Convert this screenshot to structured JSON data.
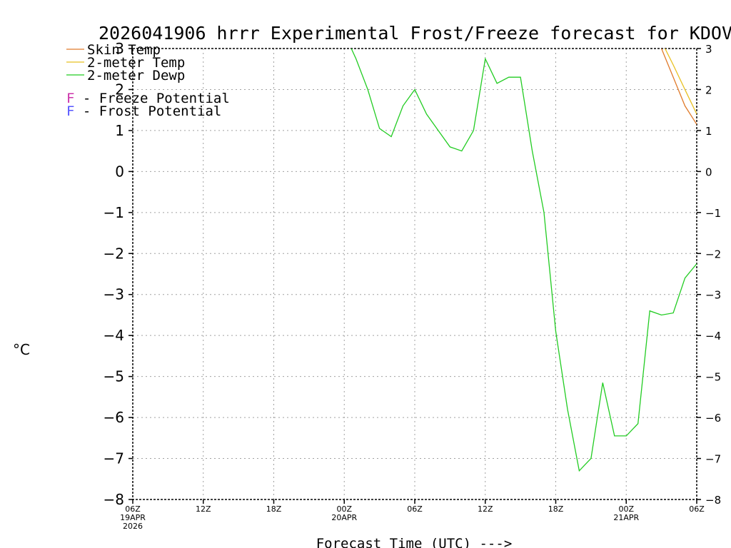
{
  "chart_data": {
    "type": "line",
    "title": "2026041906 hrrr Experimental Frost/Freeze forecast for KDOV",
    "xlabel": "Forecast Time (UTC) --->",
    "ylabel": "°C",
    "ylim": [
      -8,
      3
    ],
    "xlim_hours": [
      0,
      48
    ],
    "y_ticks": [
      3,
      2,
      1,
      0,
      -1,
      -2,
      -3,
      -4,
      -5,
      -6,
      -7,
      -8
    ],
    "y_tick_labels": [
      "3",
      "2",
      "1",
      "0",
      "−1",
      "−2",
      "−3",
      "−4",
      "−5",
      "−6",
      "−7",
      "−8"
    ],
    "x_ticks": [
      {
        "hour": 0,
        "lines": [
          "06Z",
          "19APR",
          "2026"
        ]
      },
      {
        "hour": 6,
        "lines": [
          "12Z"
        ]
      },
      {
        "hour": 12,
        "lines": [
          "18Z"
        ]
      },
      {
        "hour": 18,
        "lines": [
          "00Z",
          "20APR"
        ]
      },
      {
        "hour": 24,
        "lines": [
          "06Z"
        ]
      },
      {
        "hour": 30,
        "lines": [
          "12Z"
        ]
      },
      {
        "hour": 36,
        "lines": [
          "18Z"
        ]
      },
      {
        "hour": 42,
        "lines": [
          "00Z",
          "21APR"
        ]
      },
      {
        "hour": 48,
        "lines": [
          "06Z"
        ]
      }
    ],
    "grid": true,
    "legend_position": "top-left",
    "legend": [
      {
        "label": "Skin Temp",
        "color": "#e07a2a"
      },
      {
        "label": "2-meter Temp",
        "color": "#e8c020"
      },
      {
        "label": "2-meter Dewp",
        "color": "#22cc22"
      }
    ],
    "potential_legend": [
      {
        "marker": "F",
        "text": " - Freeze Potential",
        "color": "#cc33aa"
      },
      {
        "marker": "F",
        "text": " - Frost Potential",
        "color": "#5555ff"
      }
    ],
    "series": [
      {
        "name": "Skin Temp",
        "color": "#e07a2a",
        "x": [
          45,
          46,
          47,
          48
        ],
        "values": [
          3.0,
          2.3,
          1.6,
          1.15
        ]
      },
      {
        "name": "2-meter Temp",
        "color": "#e8c020",
        "x": [
          45.3,
          46,
          47,
          48
        ],
        "values": [
          3.0,
          2.6,
          2.0,
          1.4
        ]
      },
      {
        "name": "2-meter Dewp",
        "color": "#22cc22",
        "x": [
          18.6,
          19,
          20,
          21,
          22,
          23,
          24,
          25,
          26,
          27,
          28,
          29,
          30,
          31,
          32,
          33,
          34,
          35,
          36,
          37,
          38,
          39,
          40,
          41,
          42,
          43,
          44,
          45,
          46,
          47,
          48
        ],
        "values": [
          3.0,
          2.75,
          2.0,
          1.05,
          0.85,
          1.6,
          2.0,
          1.4,
          1.0,
          0.6,
          0.5,
          1.0,
          2.75,
          2.15,
          2.3,
          2.3,
          0.5,
          -1.0,
          -3.9,
          -5.8,
          -7.3,
          -7.0,
          -5.15,
          -6.45,
          -6.45,
          -6.15,
          -3.4,
          -3.5,
          -3.45,
          -2.6,
          -2.25
        ]
      }
    ]
  }
}
